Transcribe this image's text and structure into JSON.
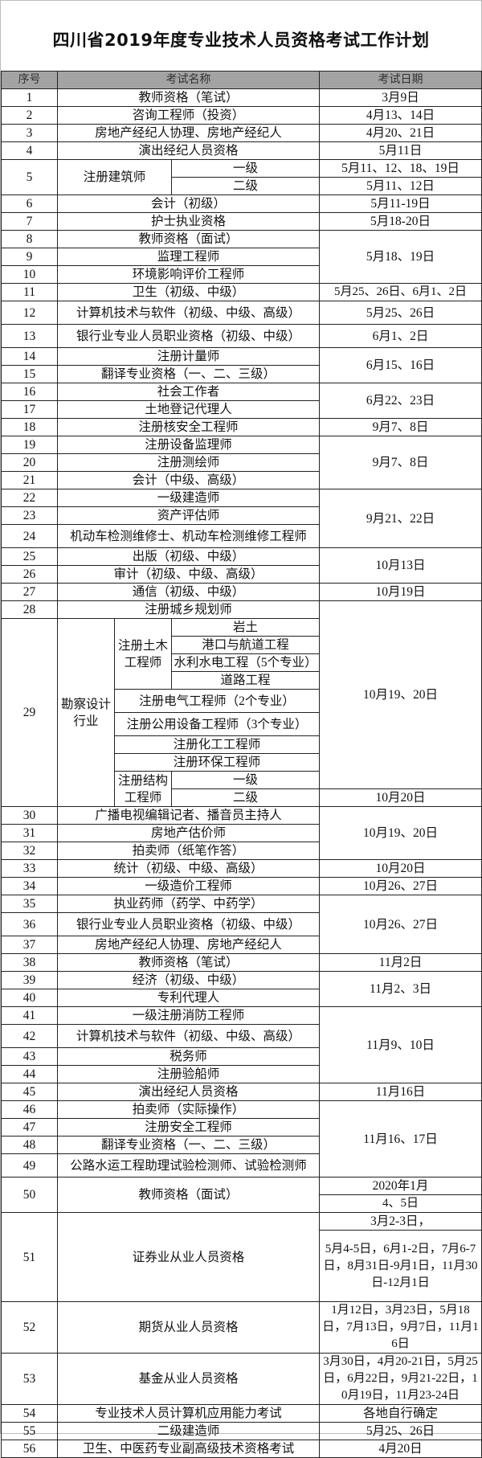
{
  "title": "四川省2019年度专业技术人员资格考试工作计划",
  "table": {
    "headers": [
      "序号",
      "考试名称",
      "考试日期"
    ],
    "groups": [
      {
        "date": "3月9日",
        "items": [
          {
            "no": "1",
            "name": "教师资格（笔试）"
          }
        ]
      },
      {
        "date": "4月13、14日",
        "items": [
          {
            "no": "2",
            "name": "咨询工程师（投资）"
          }
        ]
      },
      {
        "date": "4月20、21日",
        "items": [
          {
            "no": "3",
            "name": "房地产经纪人协理、房地产经纪人"
          }
        ]
      },
      {
        "date": "5月11日",
        "items": [
          {
            "no": "4",
            "name": "演出经纪人员资格"
          }
        ]
      },
      {
        "type": "levels",
        "no": "5",
        "name": "注册建筑师",
        "levels": [
          {
            "name": "一级",
            "date": "5月11、12、18、19日"
          },
          {
            "name": "二级",
            "date": "5月11、12日"
          }
        ]
      },
      {
        "date": "5月11-19日",
        "items": [
          {
            "no": "6",
            "name": "会计（初级）"
          }
        ]
      },
      {
        "date": "5月18-20日",
        "items": [
          {
            "no": "7",
            "name": "护士执业资格"
          }
        ]
      },
      {
        "date": "5月18、19日",
        "items": [
          {
            "no": "8",
            "name": "教师资格（面试）"
          },
          {
            "no": "9",
            "name": "监理工程师"
          },
          {
            "no": "10",
            "name": "环境影响评价工程师"
          }
        ]
      },
      {
        "date": "5月25、26日、6月1、2日",
        "items": [
          {
            "no": "11",
            "name": "卫生（初级、中级）"
          }
        ]
      },
      {
        "date": "5月25、26日",
        "items": [
          {
            "no": "12",
            "name": "计算机技术与软件（初级、中级、高级）"
          }
        ]
      },
      {
        "date": "6月1、2日",
        "items": [
          {
            "no": "13",
            "name": "银行业专业人员职业资格（初级、中级）"
          }
        ]
      },
      {
        "date": "6月15、16日",
        "items": [
          {
            "no": "14",
            "name": "注册计量师"
          },
          {
            "no": "15",
            "name": "翻译专业资格（一、二、三级）"
          }
        ]
      },
      {
        "date": "6月22、23日",
        "items": [
          {
            "no": "16",
            "name": "社会工作者"
          },
          {
            "no": "17",
            "name": "土地登记代理人"
          }
        ]
      },
      {
        "date": "9月7、8日",
        "items": [
          {
            "no": "18",
            "name": "注册核安全工程师"
          }
        ]
      },
      {
        "date": "9月7、8日",
        "items": [
          {
            "no": "19",
            "name": "注册设备监理师"
          },
          {
            "no": "20",
            "name": "注册测绘师"
          },
          {
            "no": "21",
            "name": "会计（中级、高级）"
          }
        ]
      },
      {
        "date": "9月21、22日",
        "items": [
          {
            "no": "22",
            "name": "一级建造师"
          },
          {
            "no": "23",
            "name": "资产评估师"
          },
          {
            "no": "24",
            "name": "机动车检测维修士、机动车检测维修工程师"
          }
        ]
      },
      {
        "date": "10月13日",
        "items": [
          {
            "no": "25",
            "name": "出版（初级、中级）"
          },
          {
            "no": "26",
            "name": "审计（初级、中级、高级）"
          }
        ]
      },
      {
        "date": "10月19日",
        "items": [
          {
            "no": "27",
            "name": "通信（初级、中级）"
          }
        ]
      },
      {
        "type": "survey",
        "date": "10月19、20日",
        "first": {
          "no": "28",
          "name": "注册城乡规划师"
        },
        "no": "29",
        "category": "勘察设计行业",
        "subgroups": [
          {
            "name": "注册土木工程师",
            "items": [
              "岩土",
              "港口与航道工程",
              "水利水电工程（5个专业）",
              "道路工程"
            ]
          },
          {
            "name": "注册电气工程师（2个专业）"
          },
          {
            "name": "注册公用设备工程师（3个专业）"
          },
          {
            "name": "注册化工工程师"
          },
          {
            "name": "注册环保工程师"
          },
          {
            "name": "注册结构工程师",
            "items": [
              "一级",
              "二级"
            ]
          }
        ],
        "last_date": "10月20日"
      },
      {
        "date": "10月19、20日",
        "items": [
          {
            "no": "30",
            "name": "广播电视编辑记者、播音员主持人"
          },
          {
            "no": "31",
            "name": "房地产估价师"
          },
          {
            "no": "32",
            "name": "拍卖师（纸笔作答）"
          }
        ]
      },
      {
        "date": "10月20日",
        "items": [
          {
            "no": "33",
            "name": "统计（初级、中级、高级）"
          }
        ]
      },
      {
        "date": "10月26、27日",
        "items": [
          {
            "no": "34",
            "name": "一级造价工程师"
          }
        ]
      },
      {
        "date": "10月26、27日",
        "items": [
          {
            "no": "35",
            "name": "执业药师（药学、中药学）"
          },
          {
            "no": "36",
            "name": "银行业专业人员职业资格（初级、中级）"
          },
          {
            "no": "37",
            "name": "房地产经纪人协理、房地产经纪人"
          }
        ]
      },
      {
        "date": "11月2日",
        "items": [
          {
            "no": "38",
            "name": "教师资格（笔试）"
          }
        ]
      },
      {
        "date": "11月2、3日",
        "items": [
          {
            "no": "39",
            "name": "经济（初级、中级）"
          },
          {
            "no": "40",
            "name": "专利代理人"
          }
        ]
      },
      {
        "date": "11月9、10日",
        "items": [
          {
            "no": "41",
            "name": "一级注册消防工程师"
          },
          {
            "no": "42",
            "name": "计算机技术与软件（初级、中级、高级）"
          },
          {
            "no": "43",
            "name": "税务师"
          },
          {
            "no": "44",
            "name": "注册验船师"
          }
        ]
      },
      {
        "date": "11月16日",
        "items": [
          {
            "no": "45",
            "name": "演出经纪人员资格"
          }
        ]
      },
      {
        "date": "11月16、17日",
        "items": [
          {
            "no": "46",
            "name": "拍卖师（实际操作）"
          },
          {
            "no": "47",
            "name": "注册安全工程师"
          },
          {
            "no": "48",
            "name": "翻译专业资格（一、二、三级）"
          },
          {
            "no": "49",
            "name": "公路水运工程助理试验检测师、试验检测师"
          }
        ]
      },
      {
        "type": "split",
        "no": "50",
        "name": "教师资格（面试）",
        "dates": [
          "2020年1月",
          "4、5日"
        ]
      },
      {
        "type": "split",
        "no": "51",
        "name": "证券业从业人员资格",
        "dates": [
          "3月2-3日，",
          "5月4-5日，6月1-2日，7月6-7日，8月31日-9月1日，11月30日-12月1日"
        ]
      },
      {
        "date": "1月12日，3月23日，5月18日，7月13日，9月7日，11月16日",
        "items": [
          {
            "no": "52",
            "name": "期货从业人员资格"
          }
        ]
      },
      {
        "date": "3月30日，4月20-21日，5月25日，6月22日，9月21-22日，10月19日，11月23-24日",
        "items": [
          {
            "no": "53",
            "name": "基金从业人员资格"
          }
        ]
      },
      {
        "date": "各地自行确定",
        "items": [
          {
            "no": "54",
            "name": "专业技术人员计算机应用能力考试"
          }
        ]
      },
      {
        "date": "5月25、26日",
        "items": [
          {
            "no": "55",
            "name": "二级建造师"
          }
        ]
      },
      {
        "date": "4月20日",
        "items": [
          {
            "no": "56",
            "name": "卫生、中医药专业副高级技术资格考试"
          }
        ]
      }
    ]
  }
}
